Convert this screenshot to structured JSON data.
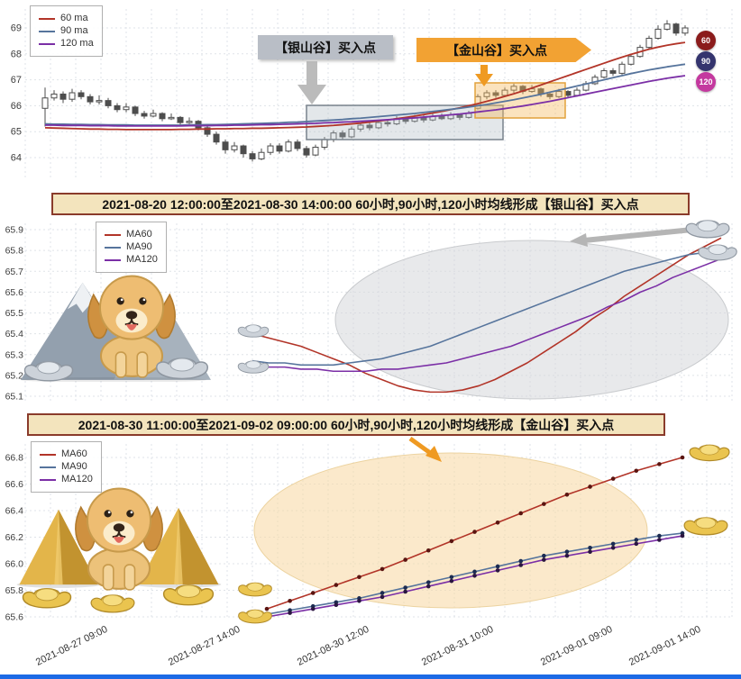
{
  "colors": {
    "ma60": "#b23428",
    "ma90": "#56749c",
    "ma120": "#7b2fa6",
    "grid": "#dfe3e8",
    "candle": "#4d4d4d",
    "banner_bg": "#f3e4bd",
    "banner_border": "#8a3b2b",
    "silver_label_bg": "#b9bec6",
    "silver_arrow": "#b5b5b5",
    "gold_label_bg": "#f2a233",
    "gold_arrow": "#ef9a22",
    "silver_box_fill": "rgba(176,186,196,0.35)",
    "silver_box_stroke": "#78828c",
    "gold_box_fill": "rgba(244,186,92,0.4)",
    "gold_box_stroke": "#e2a23c",
    "silver_ellipse_fill": "rgba(213,215,219,0.55)",
    "silver_ellipse_stroke": "#c9cbce",
    "gold_ellipse_fill": "rgba(248,219,168,0.6)",
    "gold_ellipse_stroke": "#ecd3a0",
    "bottom_bar": "#1d6ae5"
  },
  "chart_data": [
    {
      "type": "candlestick",
      "legend_position": "top-left",
      "grid": true,
      "y_ticks": [
        "69",
        "68",
        "67",
        "66",
        "65",
        "64"
      ],
      "ylim": [
        63.7,
        69.5
      ],
      "annotations": [
        {
          "text": "【银山谷】买入点",
          "style": "silver"
        },
        {
          "text": "【金山谷】买入点",
          "style": "gold"
        }
      ],
      "badges": [
        {
          "label": "60",
          "color": "#8b1c1c"
        },
        {
          "label": "90",
          "color": "#34346e"
        },
        {
          "label": "120",
          "color": "#c4399f"
        }
      ],
      "candles": [
        [
          65.9,
          66.7,
          65.2,
          66.3
        ],
        [
          66.3,
          66.6,
          66.2,
          66.45
        ],
        [
          66.45,
          66.55,
          66.1,
          66.25
        ],
        [
          66.25,
          66.65,
          66.15,
          66.5
        ],
        [
          66.5,
          66.6,
          66.25,
          66.35
        ],
        [
          66.35,
          66.45,
          66.05,
          66.15
        ],
        [
          66.15,
          66.4,
          66.05,
          66.2
        ],
        [
          66.2,
          66.3,
          65.9,
          66.0
        ],
        [
          66.0,
          66.1,
          65.75,
          65.85
        ],
        [
          65.85,
          66.1,
          65.75,
          65.95
        ],
        [
          65.95,
          66.0,
          65.6,
          65.7
        ],
        [
          65.7,
          65.8,
          65.5,
          65.6
        ],
        [
          65.6,
          65.85,
          65.55,
          65.7
        ],
        [
          65.7,
          65.75,
          65.4,
          65.5
        ],
        [
          65.5,
          65.7,
          65.45,
          65.55
        ],
        [
          65.55,
          65.6,
          65.25,
          65.35
        ],
        [
          65.35,
          65.55,
          65.3,
          65.4
        ],
        [
          65.4,
          65.45,
          65.05,
          65.15
        ],
        [
          65.15,
          65.2,
          64.8,
          64.9
        ],
        [
          64.9,
          65.0,
          64.5,
          64.6
        ],
        [
          64.6,
          64.7,
          64.15,
          64.3
        ],
        [
          64.3,
          64.6,
          64.2,
          64.45
        ],
        [
          64.45,
          64.5,
          64.0,
          64.15
        ],
        [
          64.15,
          64.25,
          63.85,
          63.95
        ],
        [
          63.95,
          64.35,
          63.9,
          64.2
        ],
        [
          64.2,
          64.55,
          64.1,
          64.45
        ],
        [
          64.45,
          64.55,
          64.15,
          64.25
        ],
        [
          64.25,
          64.7,
          64.2,
          64.6
        ],
        [
          64.6,
          64.7,
          64.25,
          64.35
        ],
        [
          64.35,
          64.45,
          64.0,
          64.1
        ],
        [
          64.1,
          64.5,
          64.05,
          64.4
        ],
        [
          64.4,
          64.8,
          64.3,
          64.7
        ],
        [
          64.7,
          65.05,
          64.6,
          64.95
        ],
        [
          64.95,
          65.05,
          64.7,
          64.8
        ],
        [
          64.8,
          65.2,
          64.75,
          65.1
        ],
        [
          65.1,
          65.35,
          65.0,
          65.25
        ],
        [
          65.25,
          65.35,
          65.05,
          65.15
        ],
        [
          65.15,
          65.45,
          65.1,
          65.35
        ],
        [
          65.35,
          65.45,
          65.2,
          65.3
        ],
        [
          65.3,
          65.6,
          65.25,
          65.5
        ],
        [
          65.5,
          65.55,
          65.3,
          65.4
        ],
        [
          65.4,
          65.65,
          65.35,
          65.55
        ],
        [
          65.55,
          65.65,
          65.35,
          65.45
        ],
        [
          65.45,
          65.7,
          65.4,
          65.6
        ],
        [
          65.6,
          65.7,
          65.45,
          65.5
        ],
        [
          65.5,
          65.75,
          65.45,
          65.65
        ],
        [
          65.65,
          65.7,
          65.45,
          65.55
        ],
        [
          65.55,
          65.8,
          65.5,
          65.7
        ],
        [
          65.9,
          66.45,
          65.85,
          66.35
        ],
        [
          66.35,
          66.6,
          66.25,
          66.5
        ],
        [
          66.5,
          66.6,
          66.3,
          66.4
        ],
        [
          66.4,
          66.7,
          66.35,
          66.6
        ],
        [
          66.6,
          66.85,
          66.5,
          66.75
        ],
        [
          66.75,
          66.8,
          66.45,
          66.55
        ],
        [
          66.55,
          66.8,
          66.5,
          66.65
        ],
        [
          66.65,
          66.7,
          66.35,
          66.45
        ],
        [
          66.45,
          66.55,
          66.25,
          66.35
        ],
        [
          66.35,
          66.65,
          66.3,
          66.55
        ],
        [
          66.55,
          66.6,
          66.3,
          66.4
        ],
        [
          66.4,
          66.7,
          66.35,
          66.6
        ],
        [
          66.6,
          66.95,
          66.55,
          66.85
        ],
        [
          66.85,
          67.2,
          66.8,
          67.1
        ],
        [
          67.1,
          67.45,
          67.05,
          67.35
        ],
        [
          67.35,
          67.45,
          67.15,
          67.25
        ],
        [
          67.25,
          67.7,
          67.2,
          67.6
        ],
        [
          67.6,
          68.0,
          67.55,
          67.9
        ],
        [
          67.9,
          68.35,
          67.85,
          68.25
        ],
        [
          68.25,
          68.7,
          68.2,
          68.6
        ],
        [
          68.6,
          69.1,
          68.55,
          68.95
        ],
        [
          68.95,
          69.3,
          68.9,
          69.15
        ],
        [
          69.15,
          69.2,
          68.7,
          68.8
        ],
        [
          68.8,
          69.1,
          68.7,
          69.0
        ]
      ],
      "series": [
        {
          "name": "60 ma",
          "color": "#b23428",
          "values": [
            65.15,
            65.14,
            65.13,
            65.12,
            65.11,
            65.1,
            65.1,
            65.09,
            65.09,
            65.08,
            65.08,
            65.08,
            65.08,
            65.08,
            65.08,
            65.09,
            65.09,
            65.1,
            65.1,
            65.11,
            65.11,
            65.12,
            65.12,
            65.13,
            65.13,
            65.14,
            65.15,
            65.16,
            65.17,
            65.18,
            65.2,
            65.22,
            65.24,
            65.27,
            65.3,
            65.33,
            65.37,
            65.41,
            65.45,
            65.5,
            65.55,
            65.6,
            65.66,
            65.72,
            65.78,
            65.85,
            65.92,
            66.0,
            66.08,
            66.17,
            66.26,
            66.36,
            66.46,
            66.57,
            66.68,
            66.8,
            66.92,
            67.04,
            67.16,
            67.28,
            67.4,
            67.52,
            67.64,
            67.76,
            67.87,
            67.98,
            68.08,
            68.18,
            68.26,
            68.33,
            68.39,
            68.44
          ]
        },
        {
          "name": "90 ma",
          "color": "#56749c",
          "values": [
            65.3,
            65.29,
            65.29,
            65.28,
            65.28,
            65.27,
            65.27,
            65.26,
            65.26,
            65.26,
            65.25,
            65.25,
            65.25,
            65.25,
            65.25,
            65.25,
            65.26,
            65.26,
            65.27,
            65.27,
            65.28,
            65.29,
            65.3,
            65.31,
            65.32,
            65.33,
            65.34,
            65.36,
            65.37,
            65.39,
            65.41,
            65.43,
            65.45,
            65.47,
            65.5,
            65.52,
            65.55,
            65.58,
            65.61,
            65.64,
            65.67,
            65.7,
            65.74,
            65.78,
            65.82,
            65.86,
            65.9,
            65.95,
            66.0,
            66.05,
            66.11,
            66.17,
            66.23,
            66.3,
            66.37,
            66.44,
            66.52,
            66.6,
            66.68,
            66.76,
            66.84,
            66.92,
            67.0,
            67.08,
            67.16,
            67.24,
            67.31,
            67.38,
            67.44,
            67.5,
            67.55,
            67.6
          ]
        },
        {
          "name": "120 ma",
          "color": "#7b2fa6",
          "values": [
            65.25,
            65.25,
            65.24,
            65.24,
            65.24,
            65.23,
            65.23,
            65.23,
            65.22,
            65.22,
            65.22,
            65.22,
            65.22,
            65.22,
            65.22,
            65.22,
            65.23,
            65.23,
            65.23,
            65.24,
            65.24,
            65.25,
            65.25,
            65.26,
            65.27,
            65.27,
            65.28,
            65.29,
            65.3,
            65.31,
            65.32,
            65.34,
            65.35,
            65.37,
            65.38,
            65.4,
            65.42,
            65.44,
            65.46,
            65.48,
            65.51,
            65.53,
            65.56,
            65.59,
            65.62,
            65.65,
            65.68,
            65.72,
            65.76,
            65.8,
            65.84,
            65.89,
            65.94,
            65.99,
            66.05,
            66.11,
            66.17,
            66.24,
            66.31,
            66.38,
            66.45,
            66.52,
            66.59,
            66.66,
            66.73,
            66.8,
            66.87,
            66.94,
            67.0,
            67.06,
            67.11,
            67.16
          ]
        }
      ]
    },
    {
      "type": "line",
      "title": "2021-08-20 12:00:00至2021-08-30 14:00:00 60小时,90小时,120小时均线形成【银山谷】买入点",
      "legend_position": "top-left",
      "grid": true,
      "y_ticks": [
        "65.9",
        "65.8",
        "65.7",
        "65.6",
        "65.5",
        "65.4",
        "65.3",
        "65.2",
        "65.1"
      ],
      "ylim": [
        65.05,
        65.95
      ],
      "series": [
        {
          "name": "MA60",
          "color": "#b23428",
          "values": [
            65.4,
            65.38,
            65.36,
            65.34,
            65.31,
            65.28,
            65.25,
            65.21,
            65.18,
            65.15,
            65.13,
            65.12,
            65.12,
            65.13,
            65.15,
            65.18,
            65.22,
            65.26,
            65.31,
            65.36,
            65.41,
            65.47,
            65.52,
            65.58,
            65.63,
            65.68,
            65.73,
            65.78,
            65.82,
            65.86
          ]
        },
        {
          "name": "MA90",
          "color": "#56749c",
          "values": [
            65.27,
            65.26,
            65.26,
            65.25,
            65.25,
            65.25,
            65.26,
            65.27,
            65.28,
            65.3,
            65.32,
            65.34,
            65.37,
            65.4,
            65.43,
            65.46,
            65.49,
            65.52,
            65.55,
            65.58,
            65.61,
            65.64,
            65.67,
            65.7,
            65.72,
            65.74,
            65.76,
            65.78,
            65.79,
            65.8
          ]
        },
        {
          "name": "MA120",
          "color": "#7b2fa6",
          "values": [
            65.25,
            65.24,
            65.24,
            65.23,
            65.23,
            65.22,
            65.22,
            65.22,
            65.23,
            65.23,
            65.24,
            65.25,
            65.26,
            65.28,
            65.3,
            65.32,
            65.34,
            65.37,
            65.4,
            65.43,
            65.46,
            65.49,
            65.53,
            65.56,
            65.6,
            65.63,
            65.67,
            65.7,
            65.73,
            65.76
          ]
        }
      ]
    },
    {
      "type": "line",
      "title": "2021-08-30 11:00:00至2021-09-02 09:00:00 60小时,90小时,120小时均线形成【金山谷】买入点",
      "legend_position": "top-left",
      "grid": true,
      "markers": true,
      "y_ticks": [
        "66.8",
        "66.6",
        "66.4",
        "66.2",
        "66.0",
        "65.8",
        "65.6"
      ],
      "ylim": [
        65.5,
        66.9
      ],
      "x_tick_labels": [
        "2021-08-27 09:00",
        "2021-08-27 14:00",
        "2021-08-30 12:00",
        "2021-08-31 10:00",
        "2021-09-01 09:00",
        "2021-09-01 14:00"
      ],
      "series": [
        {
          "name": "MA60",
          "color": "#b23428",
          "marker": "#5a1511",
          "values": [
            65.66,
            65.72,
            65.78,
            65.84,
            65.9,
            65.96,
            66.03,
            66.1,
            66.17,
            66.24,
            66.31,
            66.38,
            66.45,
            66.52,
            66.58,
            66.64,
            66.7,
            66.75,
            66.8
          ]
        },
        {
          "name": "MA90",
          "color": "#56749c",
          "marker": "#1c2b52",
          "values": [
            65.62,
            65.65,
            65.68,
            65.71,
            65.74,
            65.78,
            65.82,
            65.86,
            65.9,
            65.94,
            65.98,
            66.02,
            66.06,
            66.09,
            66.12,
            66.15,
            66.18,
            66.21,
            66.23
          ]
        },
        {
          "name": "MA120",
          "color": "#7b2fa6",
          "marker": "#2a1640",
          "values": [
            65.6,
            65.63,
            65.66,
            65.69,
            65.72,
            65.75,
            65.79,
            65.83,
            65.87,
            65.91,
            65.95,
            65.99,
            66.03,
            66.06,
            66.09,
            66.12,
            66.15,
            66.18,
            66.21
          ]
        }
      ]
    }
  ]
}
